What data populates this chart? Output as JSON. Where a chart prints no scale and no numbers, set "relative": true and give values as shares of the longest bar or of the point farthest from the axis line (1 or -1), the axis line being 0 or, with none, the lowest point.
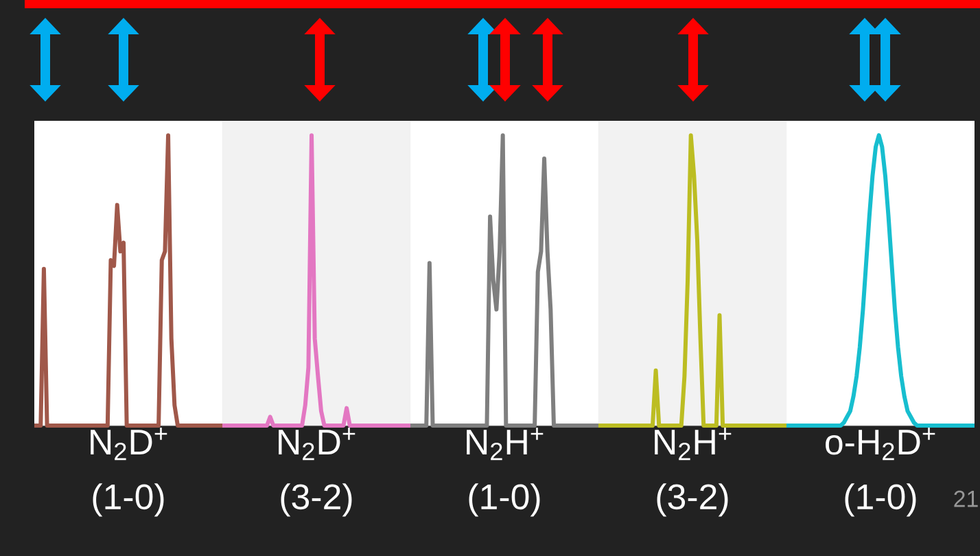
{
  "chart_data": [
    {
      "type": "line",
      "relative": true,
      "xlabel": "N$_{2}$D$^{+}$ (1-0)",
      "categories": [
        null,
        null,
        null,
        null,
        null,
        null,
        null,
        null,
        null,
        null,
        null,
        null,
        null,
        null,
        null,
        null,
        null,
        null,
        null,
        null,
        null,
        null,
        null,
        null,
        null,
        null,
        null,
        null,
        null,
        null,
        null,
        null,
        null,
        null,
        null,
        null,
        null,
        null,
        null,
        null,
        null,
        null,
        null,
        null,
        null,
        null,
        null,
        null,
        null,
        null,
        null,
        null,
        null,
        null,
        null,
        null,
        null,
        null,
        null,
        null
      ],
      "series": [
        {
          "color": "#a0584a",
          "values": [
            0,
            0,
            0,
            0.54,
            0,
            0,
            0,
            0,
            0,
            0,
            0,
            0,
            0,
            0,
            0,
            0,
            0,
            0,
            0,
            0,
            0,
            0,
            0,
            0,
            0.57,
            0.55,
            0.76,
            0.6,
            0.63,
            0,
            0,
            0,
            0,
            0,
            0,
            0,
            0,
            0,
            0,
            0,
            0.57,
            0.6,
            1,
            0.3,
            0.07,
            0,
            0,
            0,
            0,
            0,
            0,
            0,
            0,
            0,
            0,
            0,
            0,
            0,
            0,
            0
          ]
        }
      ]
    },
    {
      "type": "line",
      "relative": true,
      "xlabel": "N$_{2}$D$^{+}$ (3-2)",
      "categories": [
        null,
        null,
        null,
        null,
        null,
        null,
        null,
        null,
        null,
        null,
        null,
        null,
        null,
        null,
        null,
        null,
        null,
        null,
        null,
        null,
        null,
        null,
        null,
        null,
        null,
        null,
        null,
        null,
        null,
        null,
        null,
        null,
        null,
        null,
        null,
        null,
        null,
        null,
        null,
        null,
        null,
        null,
        null,
        null,
        null,
        null,
        null,
        null,
        null,
        null,
        null,
        null,
        null,
        null,
        null,
        null,
        null,
        null,
        null,
        null
      ],
      "series": [
        {
          "color": "#e377c2",
          "values": [
            0,
            0,
            0,
            0,
            0,
            0,
            0,
            0,
            0,
            0,
            0,
            0,
            0,
            0,
            0,
            0.03,
            0,
            0,
            0,
            0,
            0,
            0,
            0,
            0,
            0,
            0,
            0.07,
            0.2,
            1,
            0.3,
            0.17,
            0.05,
            0,
            0,
            0,
            0,
            0,
            0,
            0,
            0.06,
            0,
            0,
            0,
            0,
            0,
            0,
            0,
            0,
            0,
            0,
            0,
            0,
            0,
            0,
            0,
            0,
            0,
            0,
            0,
            0
          ]
        }
      ]
    },
    {
      "type": "line",
      "relative": true,
      "xlabel": "N$_{2}$H$^{+}$ (1-0)",
      "categories": [
        null,
        null,
        null,
        null,
        null,
        null,
        null,
        null,
        null,
        null,
        null,
        null,
        null,
        null,
        null,
        null,
        null,
        null,
        null,
        null,
        null,
        null,
        null,
        null,
        null,
        null,
        null,
        null,
        null,
        null,
        null,
        null,
        null,
        null,
        null,
        null,
        null,
        null,
        null,
        null,
        null,
        null,
        null,
        null,
        null,
        null,
        null,
        null,
        null,
        null,
        null,
        null,
        null,
        null,
        null,
        null,
        null,
        null,
        null,
        null
      ],
      "series": [
        {
          "color": "#7f7f7f",
          "values": [
            0,
            0,
            0,
            0,
            0,
            0,
            0.56,
            0,
            0,
            0,
            0,
            0,
            0,
            0,
            0,
            0,
            0,
            0,
            0,
            0,
            0,
            0,
            0,
            0,
            0,
            0.72,
            0.5,
            0.4,
            0.6,
            1,
            0,
            0,
            0,
            0,
            0,
            0,
            0,
            0,
            0,
            0,
            0.53,
            0.6,
            0.92,
            0.6,
            0.4,
            0,
            0,
            0,
            0,
            0,
            0,
            0,
            0,
            0,
            0,
            0,
            0,
            0,
            0,
            0
          ]
        }
      ]
    },
    {
      "type": "line",
      "relative": true,
      "xlabel": "N$_{2}$H$^{+}$ (3-2)",
      "categories": [
        null,
        null,
        null,
        null,
        null,
        null,
        null,
        null,
        null,
        null,
        null,
        null,
        null,
        null,
        null,
        null,
        null,
        null,
        null,
        null,
        null,
        null,
        null,
        null,
        null,
        null,
        null,
        null,
        null,
        null,
        null,
        null,
        null,
        null,
        null,
        null,
        null,
        null,
        null,
        null,
        null,
        null,
        null,
        null,
        null,
        null,
        null,
        null,
        null,
        null,
        null,
        null,
        null,
        null,
        null,
        null,
        null,
        null,
        null,
        null
      ],
      "series": [
        {
          "color": "#bcbd22",
          "values": [
            0,
            0,
            0,
            0,
            0,
            0,
            0,
            0,
            0,
            0,
            0,
            0,
            0,
            0,
            0,
            0,
            0,
            0,
            0.19,
            0,
            0,
            0,
            0,
            0,
            0,
            0,
            0,
            0.17,
            0.5,
            1,
            0.86,
            0.64,
            0.3,
            0,
            0,
            0,
            0,
            0,
            0.38,
            0,
            0,
            0,
            0,
            0,
            0,
            0,
            0,
            0,
            0,
            0,
            0,
            0,
            0,
            0,
            0,
            0,
            0,
            0,
            0,
            0
          ]
        }
      ]
    },
    {
      "type": "line",
      "relative": true,
      "xlabel": "o-H$_{2}$D$^{+}$ (1-0)",
      "annotations": [
        "21"
      ],
      "categories": [
        null,
        null,
        null,
        null,
        null,
        null,
        null,
        null,
        null,
        null,
        null,
        null,
        null,
        null,
        null,
        null,
        null,
        null,
        null,
        null,
        null,
        null,
        null,
        null,
        null,
        null,
        null,
        null,
        null,
        null,
        null,
        null,
        null,
        null,
        null,
        null,
        null,
        null,
        null,
        null,
        null,
        null,
        null,
        null,
        null,
        null,
        null,
        null,
        null,
        null,
        null,
        null,
        null,
        null,
        null,
        null,
        null,
        null,
        null,
        null
      ],
      "series": [
        {
          "color": "#17becf",
          "values": [
            0,
            0,
            0,
            0,
            0,
            0,
            0,
            0,
            0,
            0,
            0,
            0,
            0,
            0,
            0,
            0,
            0,
            0,
            0.01,
            0.03,
            0.05,
            0.1,
            0.17,
            0.27,
            0.4,
            0.56,
            0.72,
            0.86,
            0.96,
            1,
            0.96,
            0.86,
            0.72,
            0.56,
            0.4,
            0.27,
            0.17,
            0.1,
            0.05,
            0.03,
            0.01,
            0,
            0,
            0,
            0,
            0,
            0,
            0,
            0,
            0,
            0,
            0,
            0,
            0,
            0,
            0,
            0,
            0,
            0,
            0
          ]
        }
      ]
    }
  ]
}
